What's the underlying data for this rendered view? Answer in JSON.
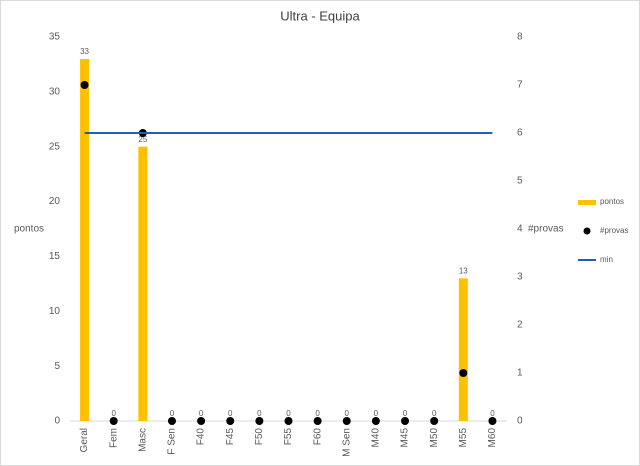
{
  "chart_data": {
    "type": "bar",
    "title": "Ultra - Equipa",
    "categories": [
      "Geral",
      "Fem",
      "Masc",
      "F Sen",
      "F40",
      "F45",
      "F50",
      "F55",
      "F60",
      "M Sen",
      "M40",
      "M45",
      "M50",
      "M55",
      "M60"
    ],
    "series": [
      {
        "name": "pontos",
        "type": "bar",
        "color": "#ffc000",
        "values": [
          33,
          0,
          25,
          0,
          0,
          0,
          0,
          0,
          0,
          0,
          0,
          0,
          0,
          13,
          0
        ]
      },
      {
        "name": "#provas",
        "type": "scatter",
        "axis": "y2",
        "color": "#000000",
        "values": [
          7,
          0,
          6,
          0,
          0,
          0,
          0,
          0,
          0,
          0,
          0,
          0,
          0,
          1,
          0
        ]
      },
      {
        "name": "min",
        "type": "line",
        "axis": "y2",
        "color": "#1f5fbf",
        "values": [
          6,
          6,
          6,
          6,
          6,
          6,
          6,
          6,
          6,
          6,
          6,
          6,
          6,
          6,
          6
        ]
      }
    ],
    "y_label": "pontos",
    "y2_label": "#provas",
    "ylim": [
      0,
      35
    ],
    "yticks": [
      0,
      5,
      10,
      15,
      20,
      25,
      30,
      35
    ],
    "y2lim": [
      0,
      8
    ],
    "y2ticks": [
      0,
      1,
      2,
      3,
      4,
      5,
      6,
      7,
      8
    ],
    "grid": false,
    "legend": "right"
  }
}
